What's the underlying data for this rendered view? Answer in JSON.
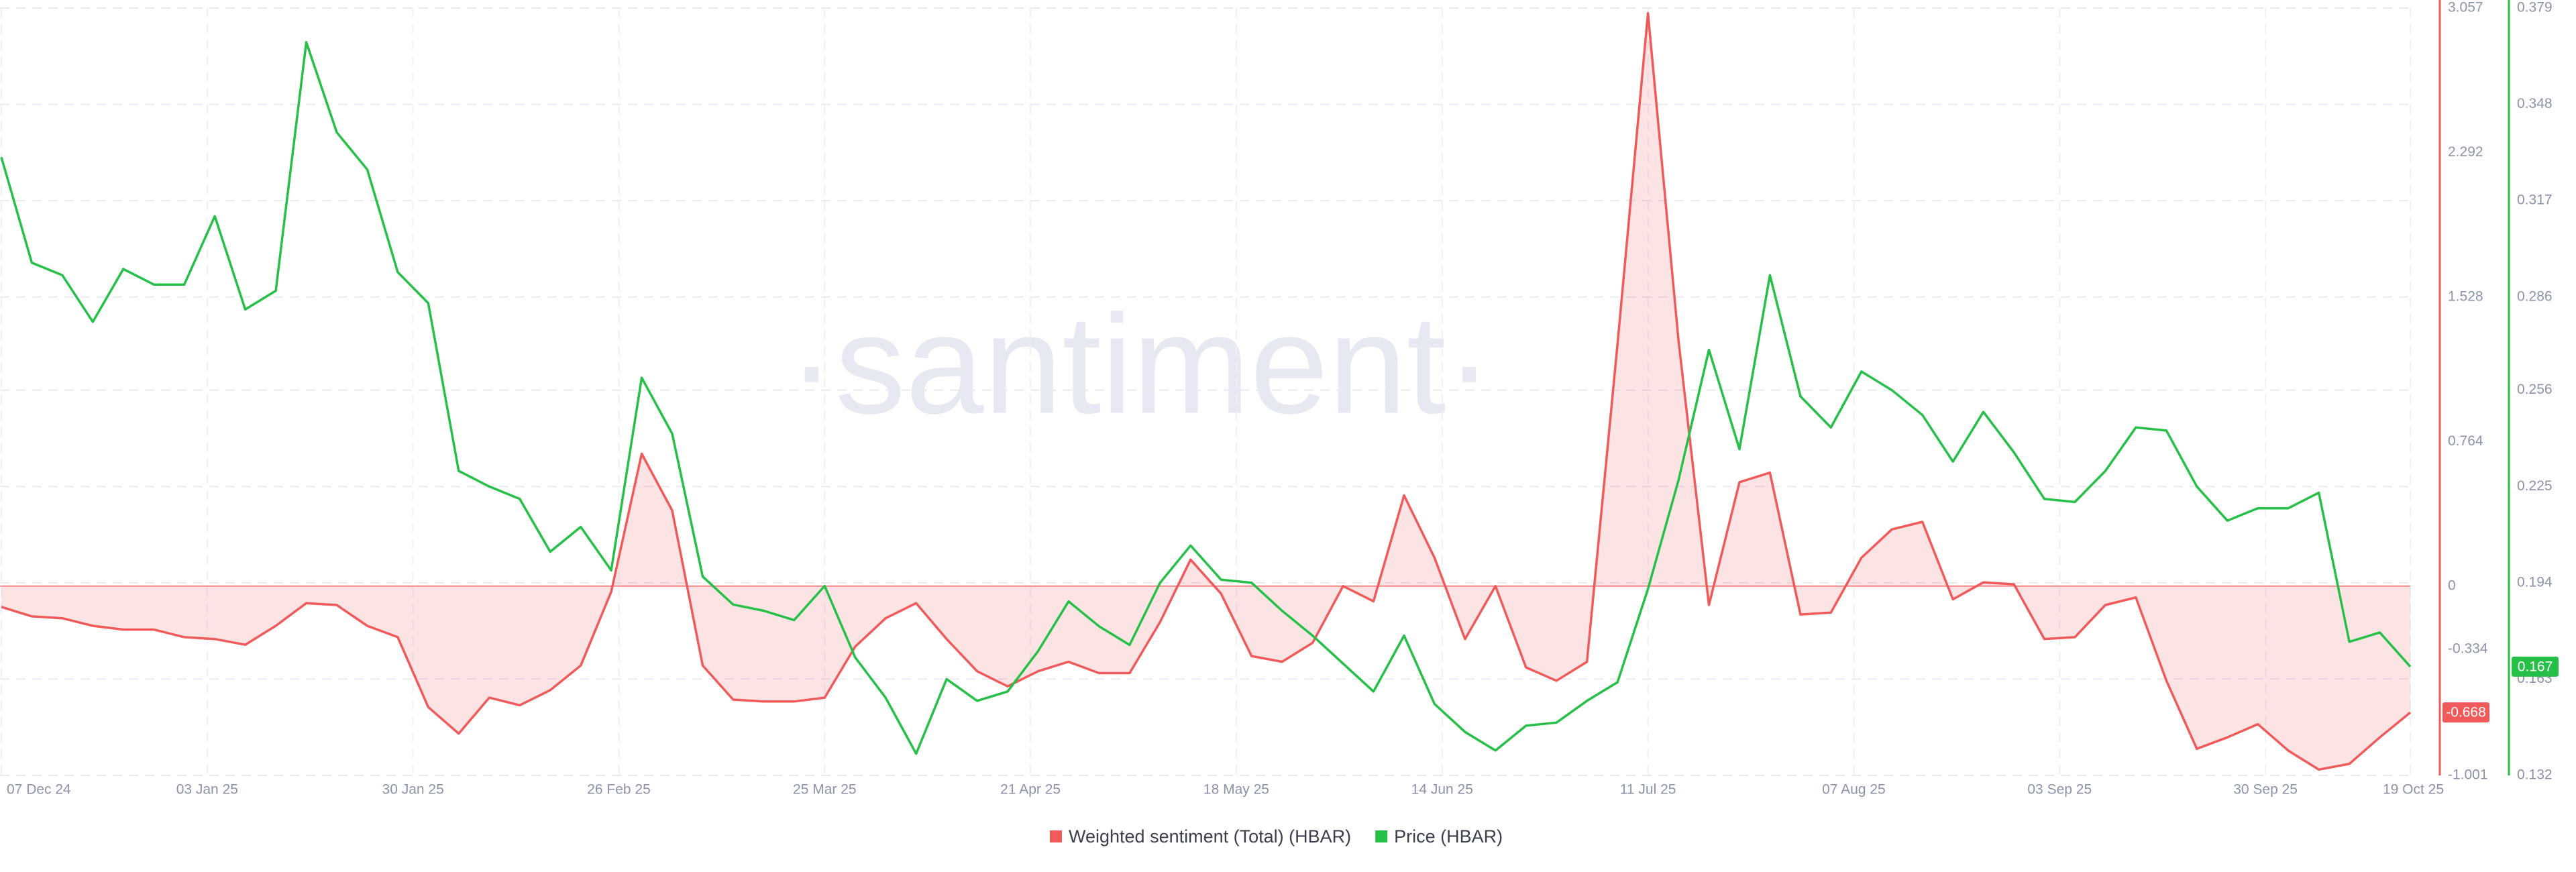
{
  "chart_data": {
    "type": "line",
    "watermark": "·santiment·",
    "x": [
      "2024-12-07",
      "2024-12-11",
      "2024-12-15",
      "2024-12-19",
      "2024-12-23",
      "2024-12-27",
      "2024-12-31",
      "2025-01-04",
      "2025-01-08",
      "2025-01-12",
      "2025-01-16",
      "2025-01-20",
      "2025-01-24",
      "2025-01-28",
      "2025-02-01",
      "2025-02-05",
      "2025-02-09",
      "2025-02-13",
      "2025-02-17",
      "2025-02-21",
      "2025-02-25",
      "2025-03-01",
      "2025-03-05",
      "2025-03-09",
      "2025-03-13",
      "2025-03-17",
      "2025-03-21",
      "2025-03-25",
      "2025-03-29",
      "2025-04-02",
      "2025-04-06",
      "2025-04-10",
      "2025-04-14",
      "2025-04-18",
      "2025-04-22",
      "2025-04-26",
      "2025-04-30",
      "2025-05-04",
      "2025-05-08",
      "2025-05-12",
      "2025-05-16",
      "2025-05-20",
      "2025-05-24",
      "2025-05-28",
      "2025-06-01",
      "2025-06-05",
      "2025-06-09",
      "2025-06-13",
      "2025-06-17",
      "2025-06-21",
      "2025-06-25",
      "2025-06-29",
      "2025-07-03",
      "2025-07-07",
      "2025-07-11",
      "2025-07-15",
      "2025-07-19",
      "2025-07-23",
      "2025-07-27",
      "2025-07-31",
      "2025-08-04",
      "2025-08-08",
      "2025-08-12",
      "2025-08-16",
      "2025-08-20",
      "2025-08-24",
      "2025-08-28",
      "2025-09-01",
      "2025-09-05",
      "2025-09-09",
      "2025-09-13",
      "2025-09-17",
      "2025-09-21",
      "2025-09-25",
      "2025-09-29",
      "2025-10-03",
      "2025-10-07",
      "2025-10-11",
      "2025-10-15",
      "2025-10-19"
    ],
    "xlim": [
      "2024-12-07",
      "2025-10-19"
    ],
    "xticks": [
      {
        "value": "2024-12-07",
        "label": "07 Dec 24"
      },
      {
        "value": "2025-01-03",
        "label": "03 Jan 25"
      },
      {
        "value": "2025-01-30",
        "label": "30 Jan 25"
      },
      {
        "value": "2025-02-26",
        "label": "26 Feb 25"
      },
      {
        "value": "2025-03-25",
        "label": "25 Mar 25"
      },
      {
        "value": "2025-04-21",
        "label": "21 Apr 25"
      },
      {
        "value": "2025-05-18",
        "label": "18 May 25"
      },
      {
        "value": "2025-06-14",
        "label": "14 Jun 25"
      },
      {
        "value": "2025-07-11",
        "label": "11 Jul 25"
      },
      {
        "value": "2025-08-07",
        "label": "07 Aug 25"
      },
      {
        "value": "2025-09-03",
        "label": "03 Sep 25"
      },
      {
        "value": "2025-09-30",
        "label": "30 Sep 25"
      },
      {
        "value": "2025-10-19",
        "label": "19 Oct 25"
      }
    ],
    "ylim": [
      -1.001,
      3.057
    ],
    "yticks": [
      -1.001,
      -0.334,
      0,
      0.764,
      1.528,
      2.292,
      3.057
    ],
    "y2lim": [
      0.132,
      0.379
    ],
    "y2ticks": [
      0.132,
      0.163,
      0.194,
      0.225,
      0.256,
      0.286,
      0.317,
      0.348,
      0.379
    ],
    "grid": true,
    "legend": "bottom",
    "series": [
      {
        "name": "Weighted sentiment (Total) (HBAR)",
        "color": "#f05a5a",
        "axis": "y",
        "area": true,
        "values": [
          -0.11,
          -0.16,
          -0.17,
          -0.21,
          -0.23,
          -0.23,
          -0.27,
          -0.28,
          -0.31,
          -0.21,
          -0.09,
          -0.1,
          -0.21,
          -0.27,
          -0.64,
          -0.78,
          -0.59,
          -0.63,
          -0.55,
          -0.42,
          -0.03,
          0.7,
          0.4,
          -0.42,
          -0.6,
          -0.61,
          -0.61,
          -0.59,
          -0.32,
          -0.17,
          -0.09,
          -0.28,
          -0.45,
          -0.53,
          -0.45,
          -0.4,
          -0.46,
          -0.46,
          -0.19,
          0.14,
          -0.04,
          -0.37,
          -0.4,
          -0.3,
          0.0,
          -0.08,
          0.48,
          0.15,
          -0.28,
          0.0,
          -0.43,
          -0.5,
          -0.4,
          1.28,
          3.03,
          1.3,
          -0.1,
          0.55,
          0.6,
          -0.15,
          -0.14,
          0.15,
          0.3,
          0.34,
          -0.07,
          0.02,
          0.01,
          -0.28,
          -0.27,
          -0.1,
          -0.06,
          -0.5,
          -0.86,
          -0.8,
          -0.73,
          -0.87,
          -0.97,
          -0.94,
          -0.8,
          -0.668
        ]
      },
      {
        "name": "Price (HBAR)",
        "color": "#26c048",
        "axis": "y2",
        "values": [
          0.331,
          0.297,
          0.293,
          0.278,
          0.295,
          0.29,
          0.29,
          0.312,
          0.282,
          0.288,
          0.368,
          0.339,
          0.327,
          0.294,
          0.284,
          0.23,
          0.225,
          0.221,
          0.204,
          0.212,
          0.198,
          0.26,
          0.242,
          0.196,
          0.187,
          0.185,
          0.182,
          0.193,
          0.17,
          0.157,
          0.139,
          0.163,
          0.156,
          0.159,
          0.172,
          0.188,
          0.18,
          0.174,
          0.194,
          0.206,
          0.195,
          0.194,
          0.185,
          0.177,
          0.168,
          0.159,
          0.177,
          0.155,
          0.146,
          0.14,
          0.148,
          0.149,
          0.156,
          0.162,
          0.192,
          0.227,
          0.269,
          0.237,
          0.293,
          0.254,
          0.244,
          0.262,
          0.256,
          0.248,
          0.233,
          0.249,
          0.236,
          0.221,
          0.22,
          0.23,
          0.244,
          0.243,
          0.225,
          0.214,
          0.218,
          0.218,
          0.223,
          0.175,
          0.178,
          0.167
        ]
      }
    ]
  }
}
